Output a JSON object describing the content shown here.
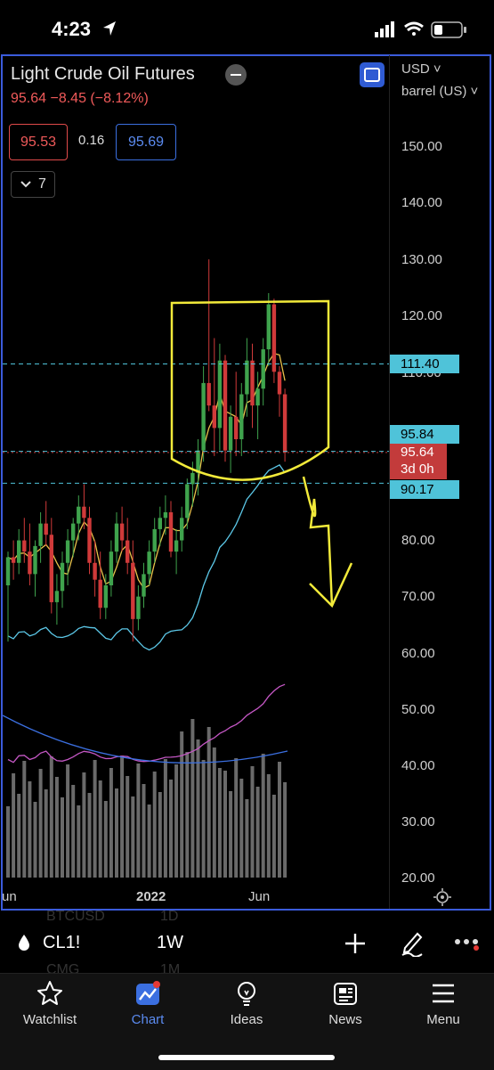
{
  "status_bar": {
    "time": "4:23"
  },
  "chart": {
    "title": "Light Crude Oil Futures",
    "price_change": "95.64 −8.45 (−8.12%)",
    "bid": "95.53",
    "spread": "0.16",
    "ask": "95.69",
    "indicator_count": "7",
    "currency": "USD",
    "unit": "barrel (US)",
    "y_ticks": [
      "150.00",
      "140.00",
      "130.00",
      "120.00",
      "110.00",
      "80.00",
      "70.00",
      "60.00",
      "50.00",
      "40.00",
      "30.00",
      "20.00"
    ],
    "price_tags": {
      "upper_line": "111.40",
      "mid_line": "95.84",
      "last_price": "95.64",
      "countdown": "3d 0h",
      "lower_line": "90.17"
    },
    "x_ticks": [
      "un",
      "2022",
      "Jun"
    ],
    "colors": {
      "up": "#3fa34d",
      "down": "#d03a3a",
      "annotation": "#f2ea3a",
      "tag_blue": "#4fc3d9",
      "tag_red": "#c33b3b",
      "frame": "#3b5bdb"
    }
  },
  "chart_data": {
    "type": "candlestick",
    "title": "Light Crude Oil Futures",
    "interval": "1W",
    "ylim": [
      20,
      155
    ],
    "ohlc": [
      [
        72,
        78,
        62,
        77
      ],
      [
        77,
        80,
        73,
        76
      ],
      [
        76,
        82,
        74,
        80
      ],
      [
        80,
        84,
        76,
        78
      ],
      [
        78,
        83,
        72,
        74
      ],
      [
        74,
        80,
        70,
        79
      ],
      [
        79,
        85,
        76,
        83
      ],
      [
        83,
        87,
        79,
        81
      ],
      [
        81,
        84,
        67,
        69
      ],
      [
        69,
        74,
        65,
        71
      ],
      [
        71,
        78,
        68,
        76
      ],
      [
        76,
        82,
        72,
        80
      ],
      [
        80,
        84,
        77,
        83
      ],
      [
        83,
        88,
        80,
        86
      ],
      [
        86,
        90,
        82,
        84
      ],
      [
        84,
        86,
        74,
        76
      ],
      [
        76,
        80,
        70,
        73
      ],
      [
        73,
        78,
        66,
        68
      ],
      [
        68,
        74,
        66,
        72
      ],
      [
        72,
        80,
        70,
        78
      ],
      [
        78,
        85,
        76,
        83
      ],
      [
        83,
        86,
        78,
        80
      ],
      [
        80,
        84,
        74,
        76
      ],
      [
        76,
        80,
        62,
        66
      ],
      [
        66,
        72,
        64,
        70
      ],
      [
        70,
        76,
        68,
        74
      ],
      [
        74,
        80,
        72,
        78
      ],
      [
        78,
        84,
        76,
        82
      ],
      [
        82,
        86,
        79,
        84
      ],
      [
        84,
        88,
        81,
        85
      ],
      [
        85,
        87,
        77,
        78
      ],
      [
        78,
        82,
        74,
        80
      ],
      [
        80,
        86,
        78,
        84
      ],
      [
        84,
        91,
        82,
        90
      ],
      [
        90,
        94,
        86,
        92
      ],
      [
        92,
        98,
        88,
        96
      ],
      [
        96,
        111,
        94,
        108
      ],
      [
        108,
        130,
        103,
        104
      ],
      [
        104,
        116,
        95,
        100
      ],
      [
        100,
        115,
        96,
        112
      ],
      [
        112,
        113,
        94,
        96
      ],
      [
        96,
        104,
        92,
        102
      ],
      [
        102,
        110,
        95,
        98
      ],
      [
        98,
        108,
        95,
        106
      ],
      [
        106,
        116,
        102,
        112
      ],
      [
        112,
        115,
        100,
        104
      ],
      [
        104,
        110,
        98,
        107
      ],
      [
        107,
        116,
        104,
        114
      ],
      [
        114,
        124,
        111,
        122
      ],
      [
        122,
        123,
        108,
        110
      ],
      [
        110,
        111,
        102,
        106
      ],
      [
        106,
        107,
        94,
        95.64
      ]
    ],
    "ma_series": [
      {
        "color": "#e8c14a"
      },
      {
        "color": "#5cc8e8"
      },
      {
        "color": "#c457c4"
      },
      {
        "color": "#3b6fe0"
      }
    ],
    "annotation": "yellow box around highs with downward arrow"
  },
  "toolbar": {
    "symbol": "CL1!",
    "interval": "1W",
    "ghost_symbol_1": "BTCUSD",
    "ghost_interval_1": "1D",
    "ghost_symbol_2": "CMG",
    "ghost_interval_2": "1M"
  },
  "tabs": [
    {
      "label": "Watchlist",
      "icon": "star-icon"
    },
    {
      "label": "Chart",
      "icon": "chart-icon"
    },
    {
      "label": "Ideas",
      "icon": "bulb-icon"
    },
    {
      "label": "News",
      "icon": "news-icon"
    },
    {
      "label": "Menu",
      "icon": "menu-icon"
    }
  ]
}
